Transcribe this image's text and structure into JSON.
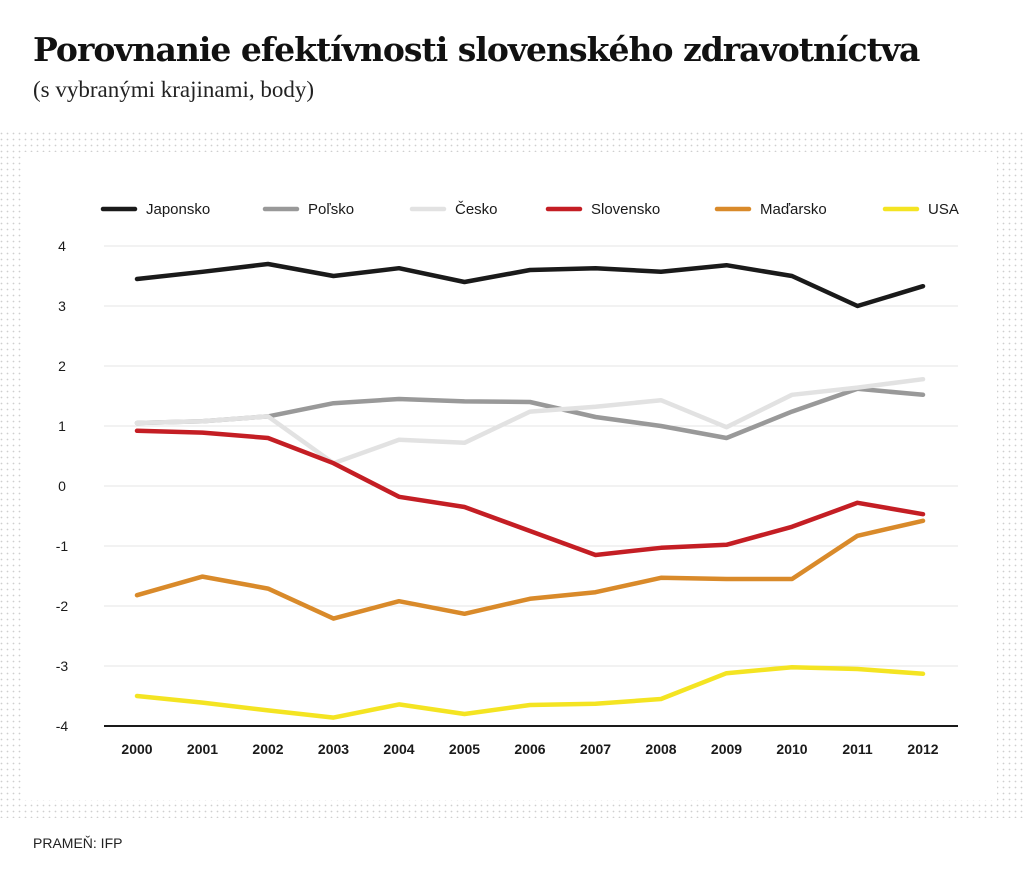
{
  "header": {
    "title": "Porovnanie efektívnosti slovenského zdravotníctva",
    "subtitle": "(s vybranými krajinami, body)"
  },
  "footer": {
    "source": "PRAMEŇ: IFP"
  },
  "chart_data": {
    "type": "line",
    "x": [
      2000,
      2001,
      2002,
      2003,
      2004,
      2005,
      2006,
      2007,
      2008,
      2009,
      2010,
      2011,
      2012
    ],
    "ylim": [
      -4,
      4
    ],
    "yticks": [
      4,
      3,
      2,
      1,
      0,
      -1,
      -2,
      -3,
      -4
    ],
    "grid": "horizontal",
    "legend_position": "top",
    "series": [
      {
        "name": "Japonsko",
        "color": "#1a1a1a",
        "values": [
          3.45,
          3.57,
          3.7,
          3.5,
          3.63,
          3.4,
          3.6,
          3.63,
          3.57,
          3.68,
          3.5,
          3.0,
          3.33
        ]
      },
      {
        "name": "Poľsko",
        "color": "#999999",
        "values": [
          1.05,
          1.08,
          1.16,
          1.38,
          1.45,
          1.41,
          1.4,
          1.15,
          1.0,
          0.8,
          1.24,
          1.62,
          1.52
        ]
      },
      {
        "name": "Česko",
        "color": "#e2e2e2",
        "values": [
          1.05,
          1.08,
          1.16,
          0.38,
          0.77,
          0.72,
          1.24,
          1.32,
          1.43,
          0.98,
          1.52,
          1.64,
          1.78
        ]
      },
      {
        "name": "Slovensko",
        "color": "#c41e24",
        "values": [
          0.92,
          0.89,
          0.8,
          0.38,
          -0.18,
          -0.35,
          -0.75,
          -1.15,
          -1.03,
          -0.98,
          -0.68,
          -0.28,
          -0.47
        ]
      },
      {
        "name": "Maďarsko",
        "color": "#d98a2a",
        "values": [
          -1.82,
          -1.51,
          -1.71,
          -2.21,
          -1.92,
          -2.13,
          -1.88,
          -1.77,
          -1.53,
          -1.55,
          -1.55,
          -0.83,
          -0.58
        ]
      },
      {
        "name": "USA",
        "color": "#f4e422",
        "values": [
          -3.5,
          -3.61,
          -3.74,
          -3.86,
          -3.64,
          -3.8,
          -3.65,
          -3.63,
          -3.55,
          -3.12,
          -3.02,
          -3.05,
          -3.13
        ]
      }
    ]
  }
}
